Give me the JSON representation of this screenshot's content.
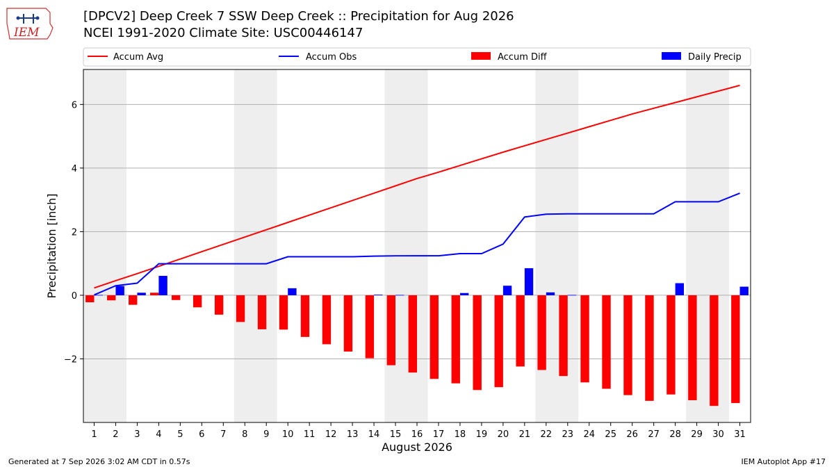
{
  "title_line1": "[DPCV2] Deep Creek 7 SSW Deep Creek :: Precipitation for Aug 2026",
  "title_line2": "NCEI 1991-2020 Climate Site: USC00446147",
  "logo_text": "IEM",
  "footer_left": "Generated at 7 Sep 2026 3:02 AM CDT in 0.57s",
  "footer_right": "IEM Autoplot App #17",
  "colors": {
    "accum_avg": "#ff0000",
    "accum_obs": "#0000ff",
    "accum_diff": "#ff0000",
    "daily_precip": "#0000ff",
    "weekend_shade": "#eeeeee",
    "grid": "#b0b0b0"
  },
  "chart_data": {
    "type": "bar",
    "xlabel": "August 2026",
    "ylabel": "Precipitation [inch]",
    "xlim": [
      0.5,
      31.5
    ],
    "ylim": [
      -4.0,
      7.1
    ],
    "yticks": [
      -2,
      0,
      2,
      4,
      6
    ],
    "ytick_labels": [
      "−2",
      "0",
      "2",
      "4",
      "6"
    ],
    "grid": "horizontal",
    "legend_position": "top",
    "legend": [
      "Accum Avg",
      "Accum Obs",
      "Accum Diff",
      "Daily Precip"
    ],
    "shaded_days": [
      [
        1,
        2
      ],
      [
        8,
        9
      ],
      [
        15,
        16
      ],
      [
        22,
        23
      ],
      [
        29,
        30
      ]
    ],
    "days": [
      1,
      2,
      3,
      4,
      5,
      6,
      7,
      8,
      9,
      10,
      11,
      12,
      13,
      14,
      15,
      16,
      17,
      18,
      19,
      20,
      21,
      22,
      23,
      24,
      25,
      26,
      27,
      28,
      29,
      30,
      31
    ],
    "series": [
      {
        "name": "Accum Avg",
        "kind": "line",
        "values": [
          0.23,
          0.46,
          0.68,
          0.91,
          1.14,
          1.37,
          1.6,
          1.83,
          2.06,
          2.29,
          2.52,
          2.75,
          2.98,
          3.21,
          3.44,
          3.67,
          3.87,
          4.08,
          4.29,
          4.5,
          4.7,
          4.9,
          5.1,
          5.3,
          5.5,
          5.7,
          5.88,
          6.06,
          6.24,
          6.42,
          6.6
        ]
      },
      {
        "name": "Accum Obs",
        "kind": "line",
        "values": [
          0.01,
          0.3,
          0.38,
          0.99,
          0.99,
          0.99,
          0.99,
          0.99,
          0.99,
          1.21,
          1.21,
          1.21,
          1.21,
          1.23,
          1.24,
          1.24,
          1.24,
          1.31,
          1.31,
          1.61,
          2.46,
          2.55,
          2.56,
          2.56,
          2.56,
          2.56,
          2.56,
          2.94,
          2.94,
          2.94,
          3.21
        ]
      },
      {
        "name": "Accum Diff",
        "kind": "bar",
        "values": [
          -0.22,
          -0.16,
          -0.3,
          0.08,
          -0.15,
          -0.38,
          -0.61,
          -0.84,
          -1.07,
          -1.08,
          -1.31,
          -1.54,
          -1.77,
          -1.98,
          -2.2,
          -2.43,
          -2.63,
          -2.77,
          -2.98,
          -2.89,
          -2.24,
          -2.35,
          -2.54,
          -2.74,
          -2.94,
          -3.14,
          -3.32,
          -3.12,
          -3.3,
          -3.48,
          -3.39
        ]
      },
      {
        "name": "Daily Precip",
        "kind": "bar",
        "values": [
          0.01,
          0.29,
          0.08,
          0.61,
          0,
          0,
          0,
          0,
          0,
          0.22,
          0,
          0,
          0,
          0.02,
          0.01,
          0,
          0,
          0.07,
          0,
          0.3,
          0.85,
          0.09,
          0.01,
          0,
          0,
          0,
          0,
          0.38,
          0,
          0,
          0.27
        ]
      }
    ]
  }
}
